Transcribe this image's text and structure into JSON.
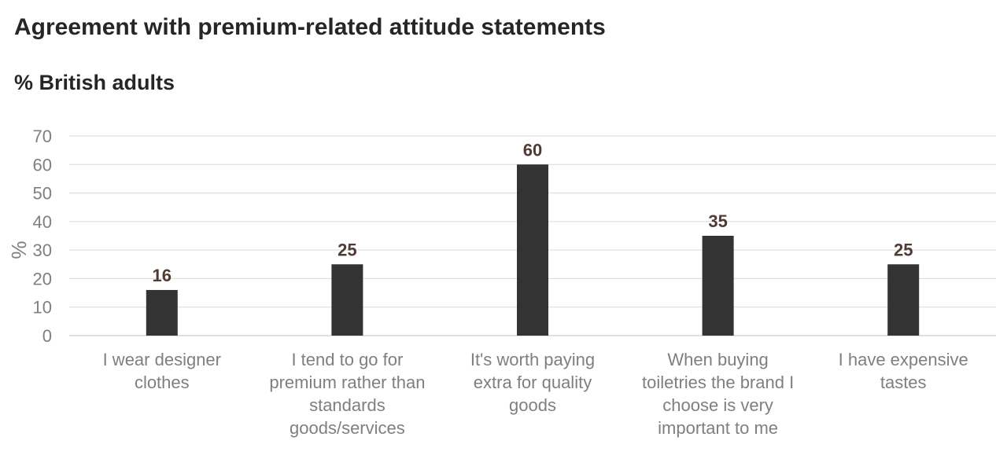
{
  "chart_data": {
    "type": "bar",
    "title": "Agreement with premium-related attitude statements",
    "subtitle": "% British adults",
    "ylabel": "%",
    "xlabel": "",
    "ylim": [
      0,
      70
    ],
    "yticks": [
      0,
      10,
      20,
      30,
      40,
      50,
      60,
      70
    ],
    "grid": true,
    "legend": "none",
    "categories": [
      [
        "I wear designer",
        "clothes"
      ],
      [
        "I tend to go for",
        "premium rather than",
        "standards",
        "goods/services"
      ],
      [
        "It's worth paying",
        "extra for quality",
        "goods"
      ],
      [
        "When buying",
        "toiletries the brand I",
        "choose is very",
        "important to me"
      ],
      [
        "I have expensive",
        "tastes"
      ]
    ],
    "values": [
      16,
      25,
      60,
      35,
      25
    ],
    "data_labels": [
      "16",
      "25",
      "60",
      "35",
      "25"
    ],
    "colors": {
      "bar": "#333333",
      "grid": "#d9d9d9",
      "axis": "#bfbfbf"
    }
  }
}
